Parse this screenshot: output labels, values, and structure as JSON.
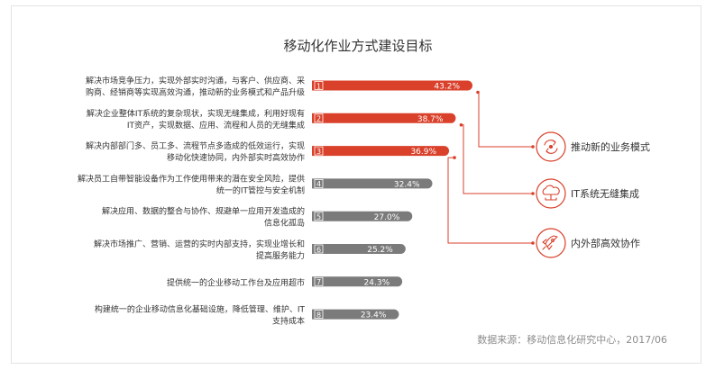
{
  "chart_data": {
    "type": "bar",
    "orientation": "horizontal",
    "title": "移动化作业方式建设目标",
    "unit": "%",
    "categories": [
      [
        "解决市场竞争压力，实现外部实时沟通，与客户、供应商、采",
        "购商、经销商等实现高效沟通，推动新的业务模式和产品升级"
      ],
      [
        "解决企业整体IT系统的复杂现状，实现无缝集成，利用好现有",
        "IT资产，实现数据、应用、流程和人员的无缝集成"
      ],
      [
        "解决内部部门多、员工多、流程节点多造成的低效运行，实现",
        "移动化快速协同，内外部实时高效协作"
      ],
      [
        "解决员工自带智能设备作为工作使用带来的潜在安全风险，提供",
        "统一的IT管控与安全机制"
      ],
      [
        "解决应用、数据的整合与协作、规避单一应用开发造成的",
        "信息化孤岛"
      ],
      [
        "解决市场推广、营销、运营的实时内部支持，实现业增长和",
        "提高服务能力"
      ],
      [
        "提供统一的企业移动工作台及应用超市"
      ],
      [
        "构建统一的企业移动信息化基础设施，降低管理、维护、IT",
        "支持成本"
      ]
    ],
    "ranks": [
      "1",
      "2",
      "3",
      "4",
      "5",
      "6",
      "7",
      "8"
    ],
    "values": [
      43.2,
      38.7,
      36.9,
      32.4,
      27.0,
      25.2,
      24.3,
      23.4
    ],
    "value_labels": [
      "43.2%",
      "38.7%",
      "36.9%",
      "32.4%",
      "27.0%",
      "25.2%",
      "24.3%",
      "23.4%"
    ],
    "highlight_count": 3,
    "xlim": [
      0,
      43.2
    ],
    "callouts": [
      {
        "label": "推动新的业务模式",
        "icon": "cycle-arrows-icon",
        "from_rank": 1
      },
      {
        "label": "IT系统无缝集成",
        "icon": "cloud-network-icon",
        "from_rank": 2
      },
      {
        "label": "内外部高效协作",
        "icon": "rocket-icon",
        "from_rank": 3
      }
    ],
    "source": "数据来源：移动信息化研究中心，2017/06",
    "colors": {
      "highlight": "#d9412b",
      "normal": "#7b7b7b",
      "text": "#333333",
      "source": "#8c8c8c",
      "border": "#e3e3e3"
    }
  }
}
